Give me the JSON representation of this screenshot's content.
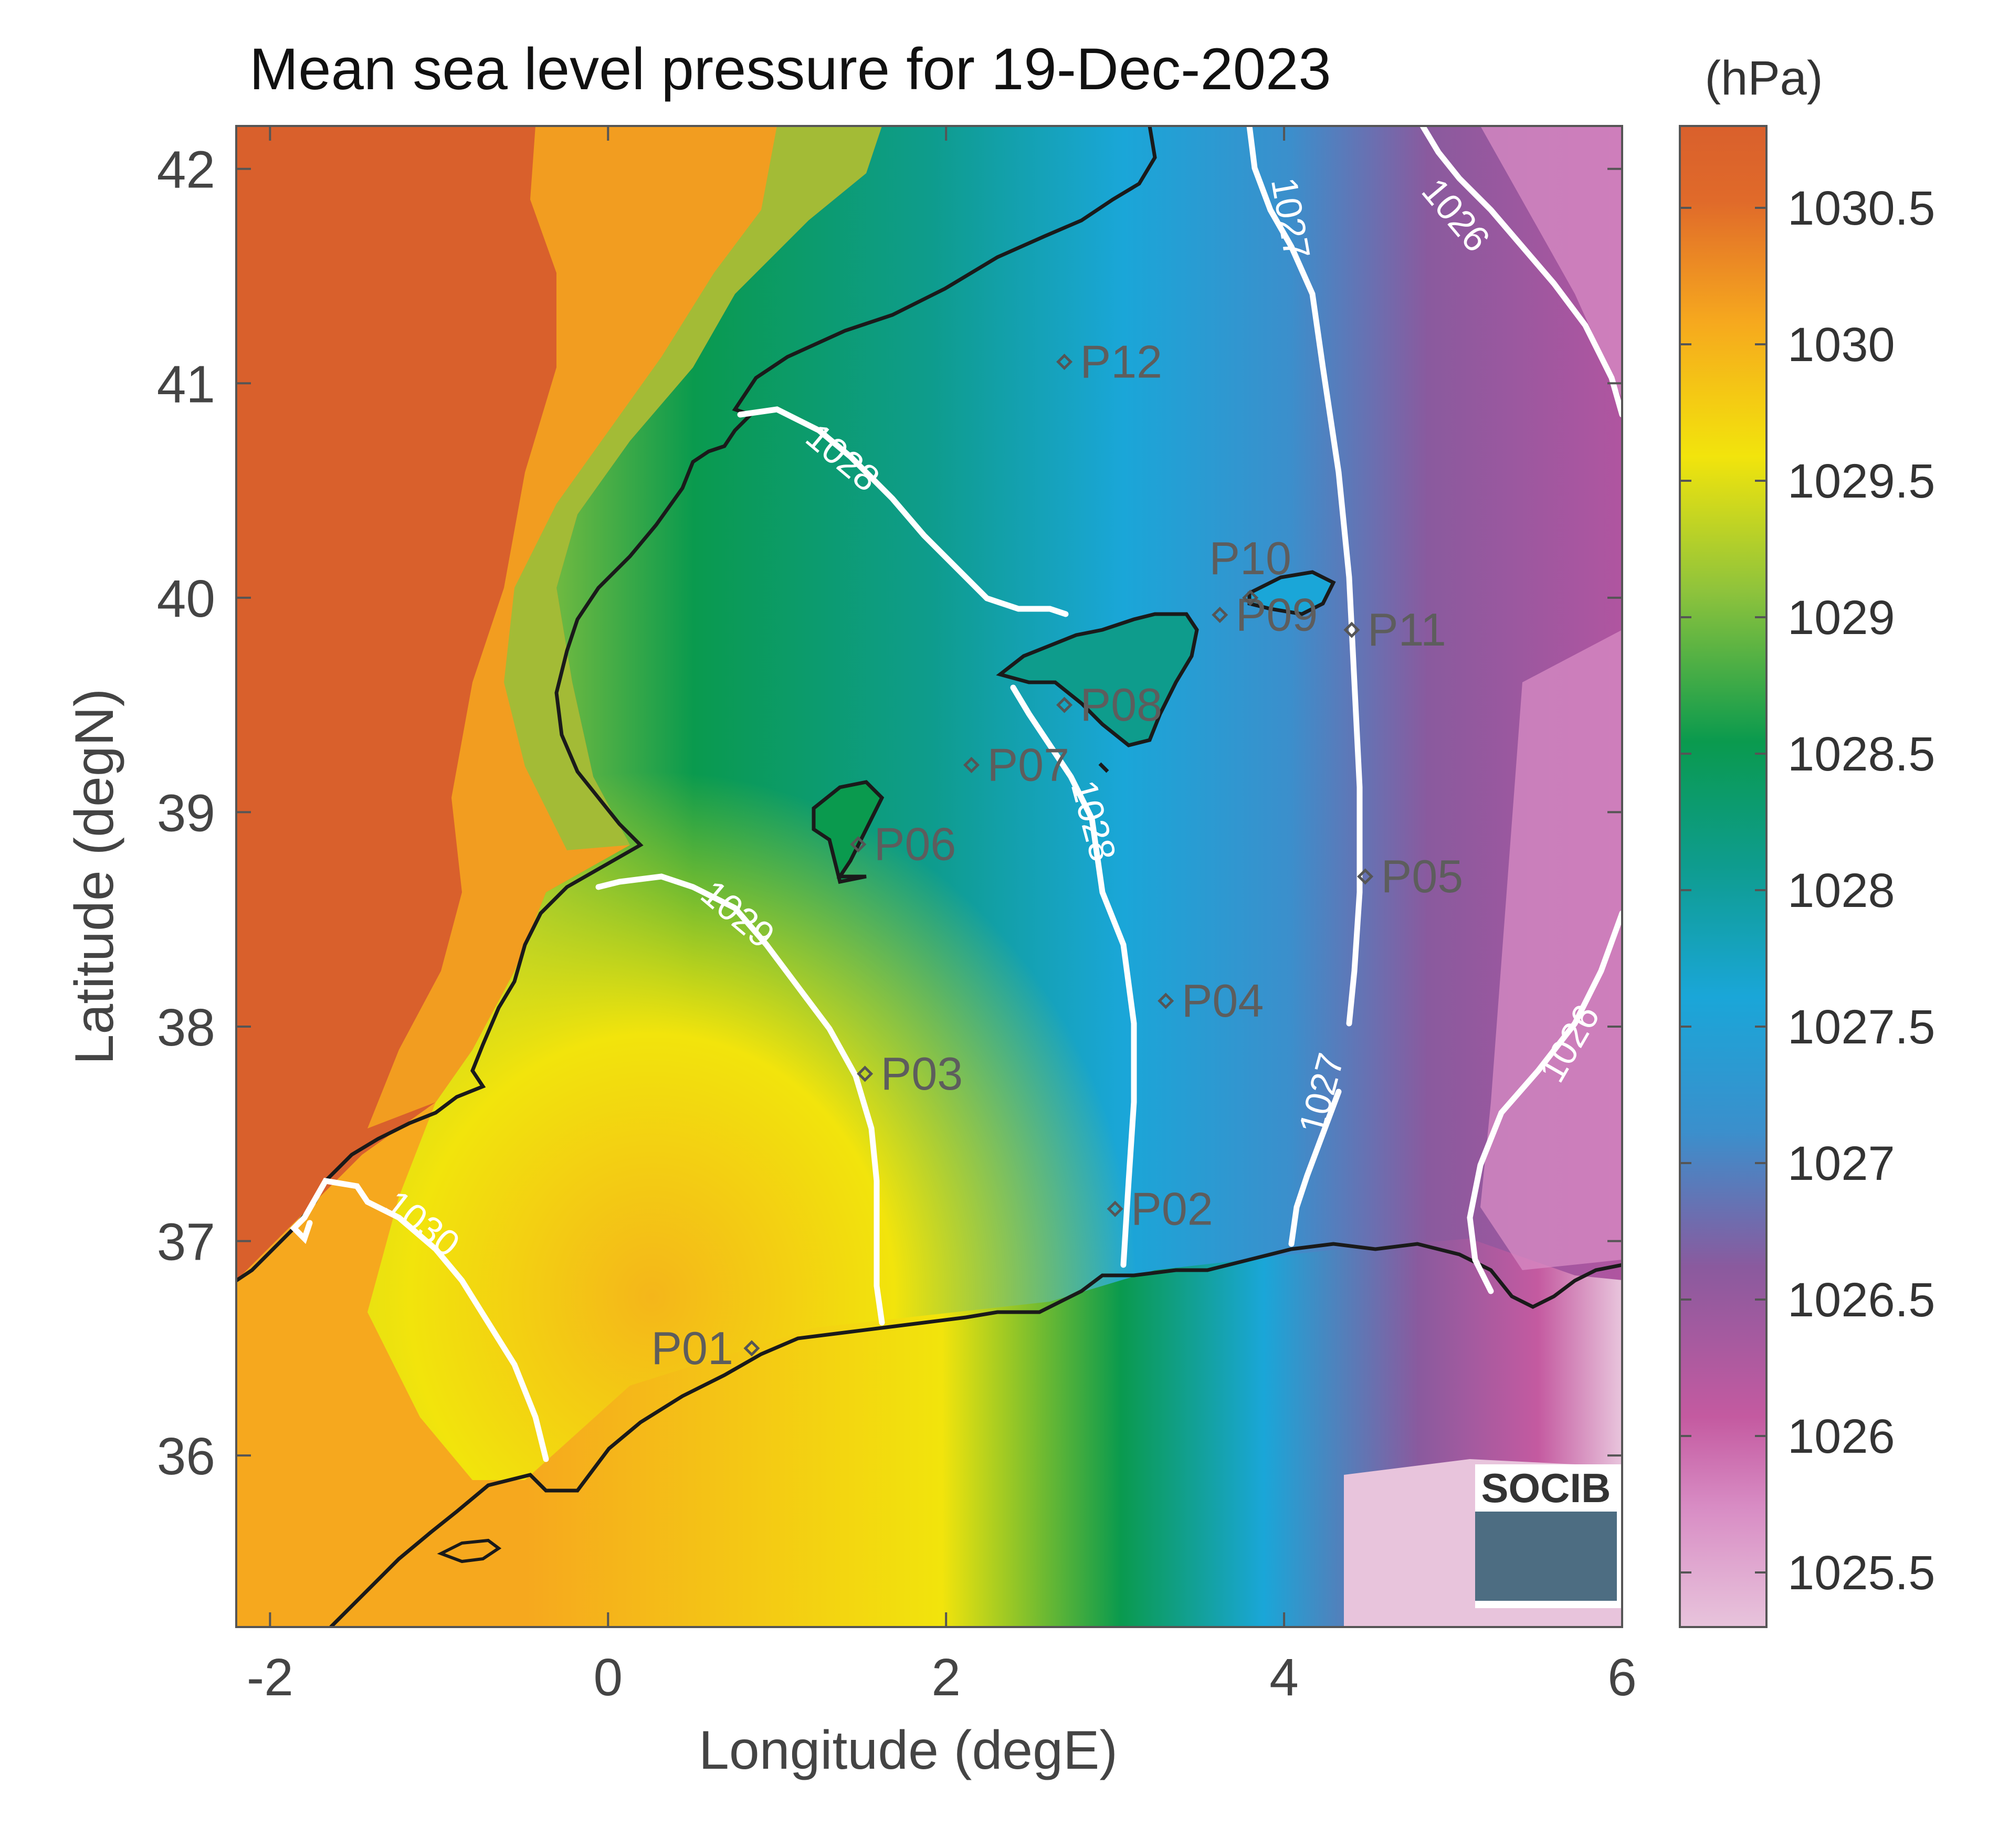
{
  "title": "Mean sea level pressure for 19-Dec-2023",
  "colorbar": {
    "unit": "(hPa)",
    "ticks": [
      "1025.5",
      "1026",
      "1026.5",
      "1027",
      "1027.5",
      "1028",
      "1028.5",
      "1029",
      "1029.5",
      "1030",
      "1030.5"
    ],
    "range": [
      1025.3,
      1030.8
    ],
    "colors": [
      "#e8c4dc",
      "#c45aa0",
      "#8a5a9e",
      "#3b8fcc",
      "#1aa6d8",
      "#0e9c8c",
      "#0a9a4e",
      "#8ec33c",
      "#f2e40c",
      "#f6a81e",
      "#e06a2a"
    ]
  },
  "axes": {
    "xlabel": "Longitude (degE)",
    "ylabel": "Latitude (degN)",
    "xlim": [
      -2.2,
      6
    ],
    "ylim": [
      35.2,
      42.2
    ],
    "xticks": [
      "-2",
      "0",
      "2",
      "4",
      "6"
    ],
    "yticks": [
      "36",
      "37",
      "38",
      "39",
      "40",
      "41",
      "42"
    ]
  },
  "contours": [
    {
      "level": "1026",
      "label": "1026"
    },
    {
      "level": "1026",
      "label": "1026"
    },
    {
      "level": "1027",
      "label": "1027"
    },
    {
      "level": "1027",
      "label": "1027"
    },
    {
      "level": "1028",
      "label": "1028"
    },
    {
      "level": "1028",
      "label": "1028"
    },
    {
      "level": "1029",
      "label": "1029"
    },
    {
      "level": "1030",
      "label": "1030"
    }
  ],
  "stations": [
    {
      "name": "P01",
      "lon": 0.85,
      "lat": 36.5
    },
    {
      "name": "P02",
      "lon": 3.0,
      "lat": 37.15
    },
    {
      "name": "P03",
      "lon": 1.52,
      "lat": 37.78
    },
    {
      "name": "P04",
      "lon": 3.3,
      "lat": 38.12
    },
    {
      "name": "P05",
      "lon": 4.48,
      "lat": 38.7
    },
    {
      "name": "P06",
      "lon": 1.48,
      "lat": 38.85
    },
    {
      "name": "P07",
      "lon": 2.15,
      "lat": 39.22
    },
    {
      "name": "P08",
      "lon": 2.7,
      "lat": 39.5
    },
    {
      "name": "P09",
      "lon": 3.62,
      "lat": 39.92
    },
    {
      "name": "P10",
      "lon": 3.8,
      "lat": 40.0
    },
    {
      "name": "P11",
      "lon": 4.4,
      "lat": 39.85
    },
    {
      "name": "P12",
      "lon": 2.7,
      "lat": 41.1
    }
  ],
  "logo": {
    "text": "SOCIB"
  }
}
